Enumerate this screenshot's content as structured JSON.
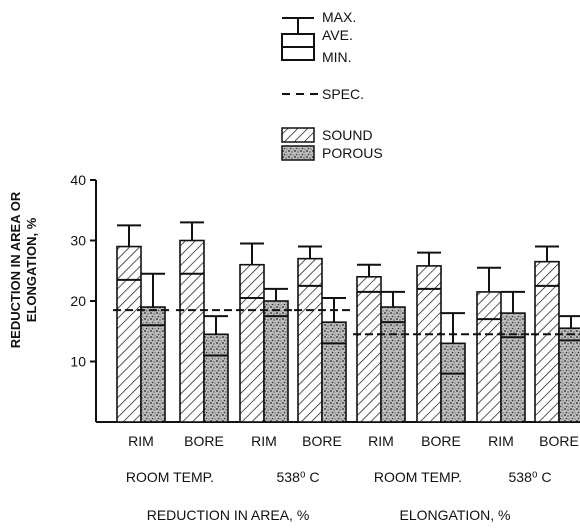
{
  "chart_data": {
    "type": "bar",
    "ylabel_lines": [
      "REDUCTION IN AREA OR",
      "ELONGATION, %"
    ],
    "ylim": [
      0,
      40
    ],
    "yticks": [
      10,
      20,
      30,
      40
    ],
    "legend": {
      "max": "MAX.",
      "ave": "AVE.",
      "min": "MIN.",
      "spec": "SPEC.",
      "sound": "SOUND",
      "porous": "POROUS"
    },
    "colors": {
      "ink": "#111111",
      "sound_fill": "#ffffff",
      "porous_fill": "#9a9a9a"
    },
    "categories": [
      "RIM",
      "BORE",
      "RIM",
      "BORE",
      "RIM",
      "BORE",
      "RIM",
      "BORE"
    ],
    "temperature_labels": [
      "ROOM TEMP.",
      "538⁰ C",
      "ROOM TEMP.",
      "538⁰ C"
    ],
    "property_labels": [
      "REDUCTION IN AREA, %",
      "ELONGATION, %"
    ],
    "spec_values": [
      18.5,
      18.5,
      18.5,
      18.5,
      14.5,
      14.5,
      14.5,
      14.5
    ],
    "series": [
      {
        "name": "SOUND",
        "max": [
          32.5,
          33,
          29.5,
          29,
          26,
          28,
          25.5,
          29
        ],
        "ave": [
          29,
          30,
          26,
          27,
          24,
          25.8,
          21.5,
          26.5
        ],
        "min": [
          23.5,
          24.5,
          20.5,
          22.5,
          21.5,
          22,
          17,
          22.5
        ]
      },
      {
        "name": "POROUS",
        "max": [
          24.5,
          17.5,
          22,
          20.5,
          21.5,
          18,
          21.5,
          17.5
        ],
        "ave": [
          19,
          14.5,
          20,
          16.5,
          19,
          13,
          18,
          15.5
        ],
        "min": [
          16,
          11,
          17.5,
          13,
          16.5,
          8,
          14,
          13.5
        ]
      }
    ]
  }
}
